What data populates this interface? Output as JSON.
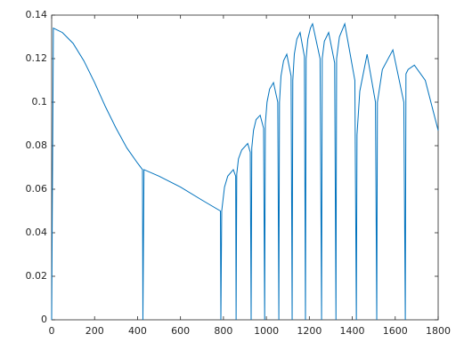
{
  "chart_data": {
    "type": "line",
    "x": [
      0,
      8,
      50,
      100,
      150,
      200,
      250,
      300,
      350,
      400,
      423,
      425,
      430,
      500,
      600,
      700,
      786,
      788,
      792,
      805,
      820,
      846,
      857,
      859,
      862,
      870,
      885,
      913,
      925,
      929,
      932,
      940,
      952,
      971,
      987,
      992,
      995,
      1003,
      1015,
      1033,
      1053,
      1058,
      1061,
      1068,
      1080,
      1095,
      1115,
      1120,
      1123,
      1130,
      1142,
      1157,
      1177,
      1182,
      1185,
      1193,
      1205,
      1215,
      1250,
      1257,
      1260,
      1270,
      1290,
      1318,
      1324,
      1327,
      1340,
      1365,
      1412,
      1419,
      1422,
      1435,
      1469,
      1508,
      1514,
      1517,
      1540,
      1589,
      1640,
      1647,
      1650,
      1660,
      1689,
      1740,
      1800
    ],
    "series": [
      {
        "color": "#0072bd",
        "values": [
          0,
          0.134,
          0.132,
          0.127,
          0.119,
          0.109,
          0.098,
          0.088,
          0.079,
          0.072,
          0.069,
          0,
          0.069,
          0.066,
          0.061,
          0.055,
          0.05,
          0,
          0.05,
          0.061,
          0.066,
          0.069,
          0.066,
          0,
          0.067,
          0.074,
          0.078,
          0.081,
          0.077,
          0,
          0.079,
          0.087,
          0.092,
          0.094,
          0.088,
          0,
          0.09,
          0.1,
          0.106,
          0.109,
          0.1,
          0,
          0.1,
          0.112,
          0.119,
          0.122,
          0.112,
          0,
          0.11,
          0.122,
          0.129,
          0.132,
          0.121,
          0,
          0.12,
          0.129,
          0.134,
          0.136,
          0.12,
          0,
          0.12,
          0.128,
          0.132,
          0.118,
          0,
          0.12,
          0.13,
          0.136,
          0.11,
          0,
          0.085,
          0.105,
          0.122,
          0.1,
          0,
          0.1,
          0.115,
          0.124,
          0.1,
          0,
          0.113,
          0.115,
          0.117,
          0.11,
          0.087
        ]
      }
    ],
    "xlim": [
      0,
      1800
    ],
    "xticks": [
      0,
      200,
      400,
      600,
      800,
      1000,
      1200,
      1400,
      1600,
      1800
    ],
    "ylim": [
      0,
      0.14
    ],
    "yticks": [
      0,
      0.02,
      0.04,
      0.06,
      0.08,
      0.1,
      0.12,
      0.14
    ],
    "grid": false
  }
}
